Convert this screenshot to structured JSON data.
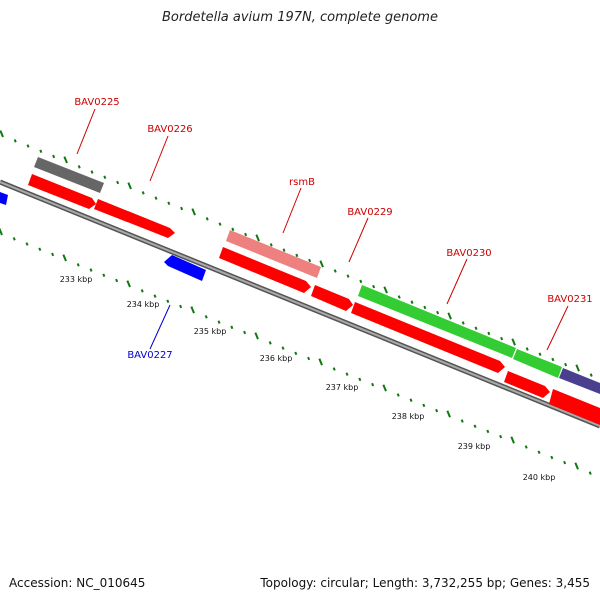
{
  "title": "Bordetella avium 197N, complete genome",
  "footer": {
    "accession": "Accession: NC_010645",
    "summary": "Topology: circular; Length: 3,732,255 bp; Genes: 3,455"
  },
  "colors": {
    "gene_red": "#ff0000",
    "gene_pink": "#ee8080",
    "gene_gray": "#666666",
    "gene_green": "#33cc33",
    "gene_navy": "#4a3f8f",
    "gene_blue": "#0000ff",
    "label_red": "#cc0000",
    "label_blue": "#0000cc",
    "tick_green": "#117711",
    "backbone": "#888888"
  },
  "scale_labels": [
    "233 kbp",
    "234 kbp",
    "235 kbp",
    "236 kbp",
    "237 kbp",
    "238 kbp",
    "239 kbp",
    "240 kbp"
  ],
  "gene_labels": [
    {
      "name": "BAV0225",
      "color": "label_red"
    },
    {
      "name": "BAV0226",
      "color": "label_red"
    },
    {
      "name": "rsmB",
      "color": "label_red"
    },
    {
      "name": "BAV0229",
      "color": "label_red"
    },
    {
      "name": "BAV0230",
      "color": "label_red"
    },
    {
      "name": "BAV0231",
      "color": "label_red"
    },
    {
      "name": "BAV0227",
      "color": "label_blue"
    }
  ]
}
